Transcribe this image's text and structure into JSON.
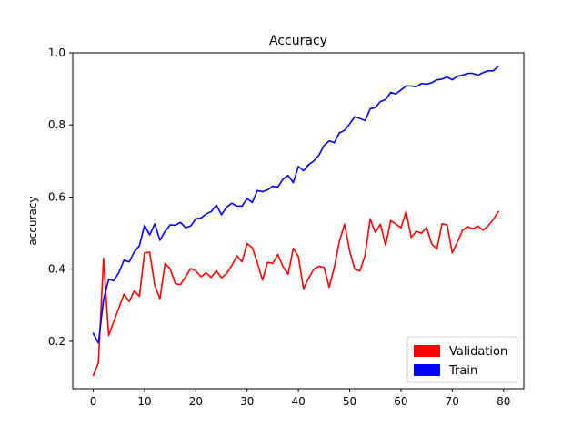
{
  "chart_data": {
    "type": "line",
    "title": "Accuracy",
    "xlabel": "",
    "ylabel": "accuracy",
    "xlim": [
      -4,
      83.95
    ],
    "ylim": [
      0.0686,
      1.0
    ],
    "grid": false,
    "legend_position": "bottom-right",
    "xticks": [
      0,
      10,
      20,
      30,
      40,
      50,
      60,
      70,
      80
    ],
    "yticks": [
      0.2,
      0.4,
      0.6,
      0.8,
      1.0
    ],
    "ytick_labels": [
      "0.2",
      "0.4",
      "0.6",
      "0.8",
      "1.0"
    ],
    "series": [
      {
        "name": "Validation",
        "color": "#ff0000",
        "x": [
          0,
          1,
          2,
          3,
          4,
          5,
          6,
          7,
          8,
          9,
          10,
          11,
          12,
          13,
          14,
          15,
          16,
          17,
          18,
          19,
          20,
          21,
          22,
          23,
          24,
          25,
          26,
          27,
          28,
          29,
          30,
          31,
          32,
          33,
          34,
          35,
          36,
          37,
          38,
          39,
          40,
          41,
          42,
          43,
          44,
          45,
          46,
          47,
          48,
          49,
          50,
          51,
          52,
          53,
          54,
          55,
          56,
          57,
          58,
          59,
          60,
          61,
          62,
          63,
          64,
          65,
          66,
          67,
          68,
          69,
          70,
          71,
          72,
          73,
          74,
          75,
          76,
          77,
          78,
          79
        ],
        "values": [
          0.105,
          0.14,
          0.43,
          0.216,
          0.255,
          0.293,
          0.331,
          0.31,
          0.34,
          0.325,
          0.445,
          0.447,
          0.355,
          0.318,
          0.416,
          0.401,
          0.36,
          0.357,
          0.379,
          0.402,
          0.395,
          0.379,
          0.39,
          0.377,
          0.396,
          0.376,
          0.388,
          0.41,
          0.437,
          0.42,
          0.471,
          0.46,
          0.418,
          0.37,
          0.419,
          0.416,
          0.441,
          0.407,
          0.386,
          0.458,
          0.435,
          0.346,
          0.375,
          0.4,
          0.408,
          0.405,
          0.35,
          0.405,
          0.478,
          0.525,
          0.45,
          0.4,
          0.395,
          0.438,
          0.54,
          0.502,
          0.525,
          0.466,
          0.535,
          0.525,
          0.515,
          0.56,
          0.488,
          0.505,
          0.5,
          0.516,
          0.47,
          0.456,
          0.526,
          0.523,
          0.445,
          0.475,
          0.508,
          0.518,
          0.512,
          0.52,
          0.508,
          0.52,
          0.538,
          0.56
        ]
      },
      {
        "name": "Train",
        "color": "#0000ff",
        "x": [
          0,
          1,
          2,
          3,
          4,
          5,
          6,
          7,
          8,
          9,
          10,
          11,
          12,
          13,
          14,
          15,
          16,
          17,
          18,
          19,
          20,
          21,
          22,
          23,
          24,
          25,
          26,
          27,
          28,
          29,
          30,
          31,
          32,
          33,
          34,
          35,
          36,
          37,
          38,
          39,
          40,
          41,
          42,
          43,
          44,
          45,
          46,
          47,
          48,
          49,
          50,
          51,
          52,
          53,
          54,
          55,
          56,
          57,
          58,
          59,
          60,
          61,
          62,
          63,
          64,
          65,
          66,
          67,
          68,
          69,
          70,
          71,
          72,
          73,
          74,
          75,
          76,
          77,
          78,
          79
        ],
        "values": [
          0.222,
          0.195,
          0.315,
          0.372,
          0.368,
          0.391,
          0.425,
          0.42,
          0.448,
          0.465,
          0.522,
          0.495,
          0.526,
          0.48,
          0.505,
          0.523,
          0.522,
          0.53,
          0.515,
          0.52,
          0.54,
          0.542,
          0.553,
          0.56,
          0.578,
          0.551,
          0.572,
          0.583,
          0.575,
          0.575,
          0.596,
          0.585,
          0.618,
          0.615,
          0.62,
          0.63,
          0.628,
          0.65,
          0.66,
          0.64,
          0.685,
          0.673,
          0.69,
          0.7,
          0.716,
          0.743,
          0.756,
          0.751,
          0.778,
          0.785,
          0.803,
          0.823,
          0.818,
          0.812,
          0.845,
          0.848,
          0.865,
          0.87,
          0.89,
          0.886,
          0.897,
          0.908,
          0.908,
          0.906,
          0.915,
          0.913,
          0.917,
          0.925,
          0.927,
          0.933,
          0.925,
          0.935,
          0.938,
          0.943,
          0.943,
          0.938,
          0.945,
          0.95,
          0.95,
          0.963
        ]
      }
    ]
  }
}
